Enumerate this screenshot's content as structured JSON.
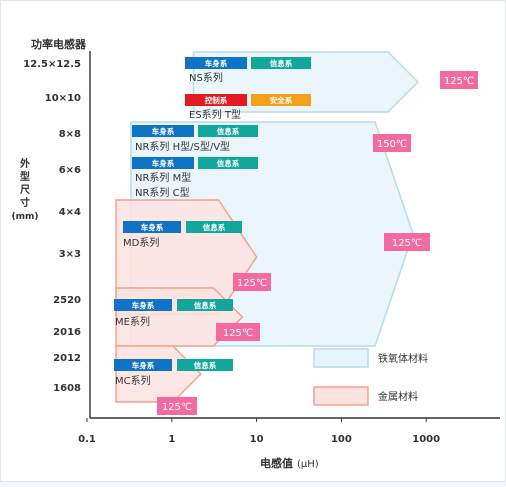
{
  "chart_data": {
    "type": "range-map",
    "y_title": "功率电感器",
    "y_side_label": [
      "外",
      "型",
      "尺",
      "寸"
    ],
    "y_unit": "(mm)",
    "y_categories": [
      "12.5×12.5",
      "10×10",
      "8×8",
      "6×6",
      "4×4",
      "3×3",
      "2520",
      "2016",
      "2012",
      "1608"
    ],
    "x_scale": "log",
    "x_ticks": [
      "0.1",
      "1",
      "10",
      "100",
      "1000"
    ],
    "x_label_main": "电感值",
    "x_label_unit": "(μH)",
    "colors": {
      "ferrite_fill": "#e6f5fb",
      "ferrite_stroke": "#b7dbe8",
      "metal_fill": "#fde3df",
      "metal_stroke": "#f4a190",
      "tag_blue": "#0f74c6",
      "tag_green": "#12a79c",
      "tag_red": "#e01b24",
      "tag_orange": "#f6a01a",
      "temp_fill": "#f36aa0",
      "axis": "#333333"
    },
    "regions": [
      {
        "material": "ferrite",
        "from_cat": 0,
        "to_cat": 1,
        "x_min": 1.8,
        "x_max": 800
      },
      {
        "material": "ferrite",
        "from_cat": 2,
        "to_cat": 7,
        "x_min": 0.33,
        "x_max": 700
      },
      {
        "material": "metal",
        "from_cat": 4,
        "to_cat": 6,
        "x_min": 0.22,
        "x_max": 10
      },
      {
        "material": "metal",
        "from_cat": 6,
        "to_cat": 7,
        "x_min": 0.22,
        "x_max": 6.8
      },
      {
        "material": "metal",
        "from_cat": 8,
        "to_cat": 9,
        "x_min": 0.22,
        "x_max": 2.2
      }
    ],
    "series_labels": [
      {
        "text": "NS系列",
        "cat": 0
      },
      {
        "text": "ES系列 T型",
        "cat": 1
      },
      {
        "text": "NR系列 H型/S型/V型",
        "cat": 2
      },
      {
        "text": "NR系列 M型",
        "cat": 3
      },
      {
        "text": "NR系列 C型",
        "cat": 3
      },
      {
        "text": "MD系列",
        "cat": 5
      },
      {
        "text": "ME系列",
        "cat": 7
      },
      {
        "text": "MC系列",
        "cat": 9
      }
    ],
    "tags": [
      {
        "text": "车身系",
        "color": "blue"
      },
      {
        "text": "信息系",
        "color": "green"
      },
      {
        "text": "控制系",
        "color": "red"
      },
      {
        "text": "安全系",
        "color": "orange"
      }
    ],
    "temperatures": [
      "125℃",
      "150℃",
      "125℃",
      "125℃",
      "125℃",
      "125℃"
    ],
    "legend": [
      {
        "text": "铁氧体材料",
        "material": "ferrite"
      },
      {
        "text": "金属材料",
        "material": "metal"
      }
    ]
  }
}
